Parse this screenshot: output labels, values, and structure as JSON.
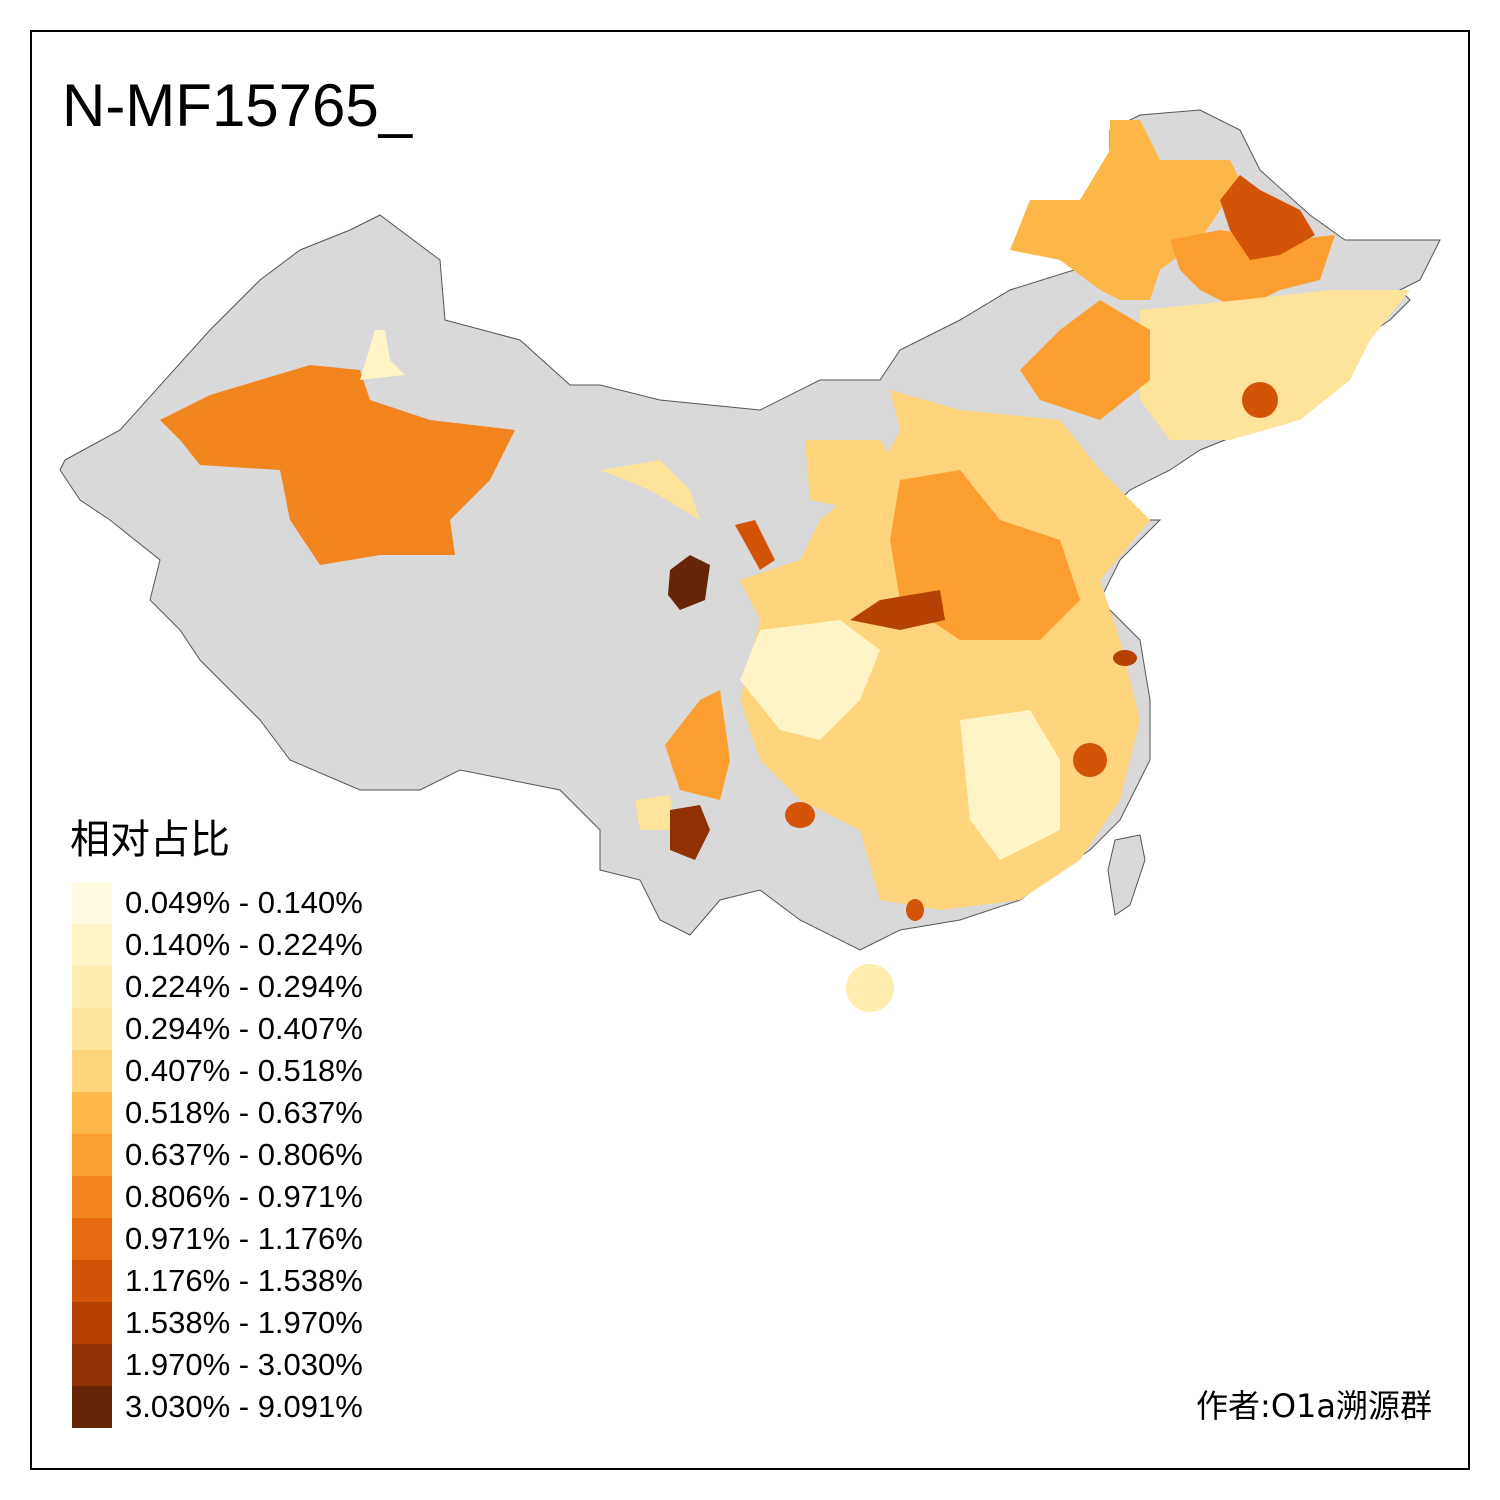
{
  "title": "N-MF15765_",
  "legend": {
    "title": "相对占比",
    "items": [
      {
        "label": "0.049% - 0.140%",
        "color": "#fffce3"
      },
      {
        "label": "0.140% - 0.224%",
        "color": "#fff4c6"
      },
      {
        "label": "0.224% - 0.294%",
        "color": "#ffecb0"
      },
      {
        "label": "0.294% - 0.407%",
        "color": "#fee39a"
      },
      {
        "label": "0.407% - 0.518%",
        "color": "#fed47c"
      },
      {
        "label": "0.518% - 0.637%",
        "color": "#fdb748"
      },
      {
        "label": "0.637% - 0.806%",
        "color": "#fc9f30"
      },
      {
        "label": "0.806% - 0.971%",
        "color": "#f3851f"
      },
      {
        "label": "0.971% - 1.176%",
        "color": "#e76a10"
      },
      {
        "label": "1.176% - 1.538%",
        "color": "#d35307"
      },
      {
        "label": "1.538% - 1.970%",
        "color": "#b54105"
      },
      {
        "label": "1.970% - 3.030%",
        "color": "#8f3104"
      },
      {
        "label": "3.030% - 9.091%",
        "color": "#672507"
      }
    ]
  },
  "credit": "作者:O1a溯源群"
}
